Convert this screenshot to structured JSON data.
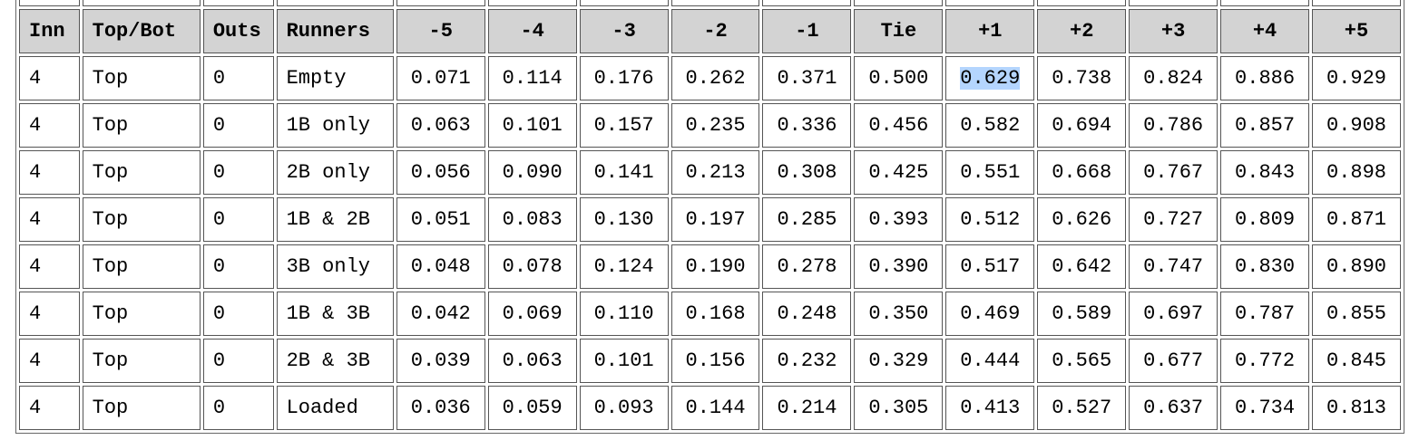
{
  "table": {
    "headers": [
      "Inn",
      "Top/Bot",
      "Outs",
      "Runners",
      "-5",
      "-4",
      "-3",
      "-2",
      "-1",
      "Tie",
      "+1",
      "+2",
      "+3",
      "+4",
      "+5"
    ],
    "rows": [
      [
        "4",
        "Top",
        "0",
        "Empty",
        "0.071",
        "0.114",
        "0.176",
        "0.262",
        "0.371",
        "0.500",
        "0.629",
        "0.738",
        "0.824",
        "0.886",
        "0.929"
      ],
      [
        "4",
        "Top",
        "0",
        "1B only",
        "0.063",
        "0.101",
        "0.157",
        "0.235",
        "0.336",
        "0.456",
        "0.582",
        "0.694",
        "0.786",
        "0.857",
        "0.908"
      ],
      [
        "4",
        "Top",
        "0",
        "2B only",
        "0.056",
        "0.090",
        "0.141",
        "0.213",
        "0.308",
        "0.425",
        "0.551",
        "0.668",
        "0.767",
        "0.843",
        "0.898"
      ],
      [
        "4",
        "Top",
        "0",
        "1B & 2B",
        "0.051",
        "0.083",
        "0.130",
        "0.197",
        "0.285",
        "0.393",
        "0.512",
        "0.626",
        "0.727",
        "0.809",
        "0.871"
      ],
      [
        "4",
        "Top",
        "0",
        "3B only",
        "0.048",
        "0.078",
        "0.124",
        "0.190",
        "0.278",
        "0.390",
        "0.517",
        "0.642",
        "0.747",
        "0.830",
        "0.890"
      ],
      [
        "4",
        "Top",
        "0",
        "1B & 3B",
        "0.042",
        "0.069",
        "0.110",
        "0.168",
        "0.248",
        "0.350",
        "0.469",
        "0.589",
        "0.697",
        "0.787",
        "0.855"
      ],
      [
        "4",
        "Top",
        "0",
        "2B & 3B",
        "0.039",
        "0.063",
        "0.101",
        "0.156",
        "0.232",
        "0.329",
        "0.444",
        "0.565",
        "0.677",
        "0.772",
        "0.845"
      ],
      [
        "4",
        "Top",
        "0",
        "Loaded",
        "0.036",
        "0.059",
        "0.093",
        "0.144",
        "0.214",
        "0.305",
        "0.413",
        "0.527",
        "0.637",
        "0.734",
        "0.813"
      ]
    ]
  }
}
